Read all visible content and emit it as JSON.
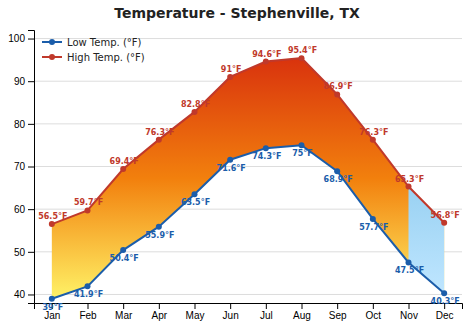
{
  "chart_data": {
    "type": "line",
    "title": "Temperature - Stephenville, TX",
    "categories": [
      "Jan",
      "Feb",
      "Mar",
      "Apr",
      "May",
      "Jun",
      "Jul",
      "Aug",
      "Sep",
      "Oct",
      "Nov",
      "Dec"
    ],
    "series": [
      {
        "name": "Low Temp. (°F)",
        "color": "#1b5daa",
        "marker": "circle",
        "values": [
          39.0,
          41.9,
          50.4,
          55.9,
          63.5,
          71.6,
          74.3,
          75.0,
          68.9,
          57.7,
          47.5,
          40.3
        ],
        "value_labels": [
          "39°F",
          "41.9°F",
          "50.4°F",
          "55.9°F",
          "63.5°F",
          "71.6°F",
          "74.3°F",
          "75°F",
          "68.9°F",
          "57.7°F",
          "47.5°F",
          "40.3°F"
        ]
      },
      {
        "name": "High Temp. (°F)",
        "color": "#c0392b",
        "marker": "circle",
        "values": [
          56.5,
          59.7,
          69.4,
          76.3,
          82.8,
          91.0,
          94.6,
          95.4,
          86.9,
          76.3,
          65.3,
          56.8
        ],
        "value_labels": [
          "56.5°F",
          "59.7°F",
          "69.4°F",
          "76.3°F",
          "82.8°F",
          "91°F",
          "94.6°F",
          "95.4°F",
          "86.9°F",
          "76.3°F",
          "65.3°F",
          "56.8°F"
        ]
      }
    ],
    "ylim": [
      38,
      102
    ],
    "yticks": [
      40,
      50,
      60,
      70,
      80,
      90,
      100
    ],
    "grid": true,
    "legend": "upper left",
    "data_labels": true
  }
}
